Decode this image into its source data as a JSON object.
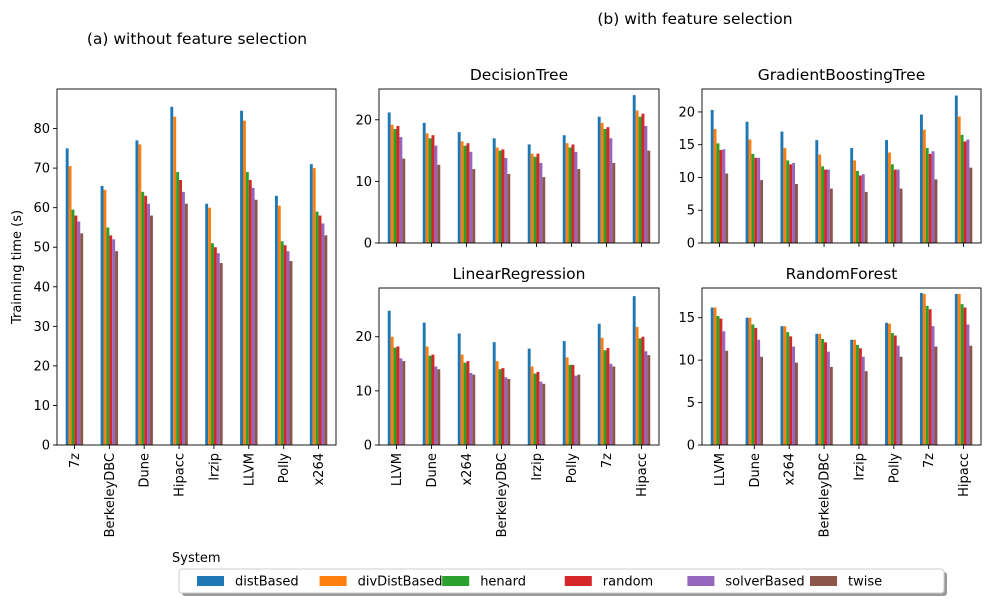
{
  "figure": {
    "left_title": "(a) without feature selection",
    "right_title": "(b) with feature selection",
    "ylabel": "Trainning time (s)",
    "legend_title": "System"
  },
  "legend": {
    "entries": [
      {
        "name": "distBased",
        "color": "#1f77b4"
      },
      {
        "name": "divDistBased",
        "color": "#ff7f0e"
      },
      {
        "name": "henard",
        "color": "#2ca02c"
      },
      {
        "name": "random",
        "color": "#d62728"
      },
      {
        "name": "solverBased",
        "color": "#9467bd"
      },
      {
        "name": "twise",
        "color": "#8c564b"
      }
    ]
  },
  "chart_data": [
    {
      "id": "a",
      "type": "bar",
      "title": "",
      "ylabel": "Trainning time (s)",
      "ylim": [
        0,
        90
      ],
      "yticks": [
        0,
        10,
        20,
        30,
        40,
        50,
        60,
        70,
        80
      ],
      "categories": [
        "7z",
        "BerkeleyDBC",
        "Dune",
        "Hipacc",
        "lrzip",
        "LLVM",
        "Polly",
        "x264"
      ],
      "series": [
        {
          "name": "distBased",
          "values": [
            75,
            65.5,
            77,
            85.5,
            61,
            84.5,
            63,
            71
          ]
        },
        {
          "name": "divDistBased",
          "values": [
            70.5,
            64.5,
            76,
            83,
            60,
            82,
            60.5,
            70
          ]
        },
        {
          "name": "henard",
          "values": [
            59.5,
            55,
            64,
            69,
            51,
            69,
            51.5,
            59
          ]
        },
        {
          "name": "random",
          "values": [
            58,
            53,
            63,
            67,
            50,
            67,
            50.5,
            58
          ]
        },
        {
          "name": "solverBased",
          "values": [
            56.5,
            52,
            61,
            64,
            48.5,
            65,
            49,
            56
          ]
        },
        {
          "name": "twise",
          "values": [
            53.5,
            49,
            58,
            61,
            46,
            62,
            46.5,
            53
          ]
        }
      ],
      "xtick_labels": true,
      "grid": false
    },
    {
      "id": "b1",
      "type": "bar",
      "title": "DecisionTree",
      "ylim": [
        0,
        25
      ],
      "yticks": [
        0,
        10,
        20
      ],
      "categories": [
        "LLVM",
        "Dune",
        "x264",
        "BerkeleyDBC",
        "lrzip",
        "Polly",
        "7z",
        "Hipacc"
      ],
      "series": [
        {
          "name": "distBased",
          "values": [
            21.2,
            19.5,
            18,
            17,
            16,
            17.5,
            20.5,
            24
          ]
        },
        {
          "name": "divDistBased",
          "values": [
            19.2,
            17.8,
            16.5,
            15.5,
            14.5,
            16.2,
            19.5,
            21.5
          ]
        },
        {
          "name": "henard",
          "values": [
            18.5,
            17,
            15.8,
            15,
            14,
            15.5,
            18.5,
            20.5
          ]
        },
        {
          "name": "random",
          "values": [
            19,
            17.5,
            16.2,
            15.2,
            14.5,
            16,
            18.8,
            21
          ]
        },
        {
          "name": "solverBased",
          "values": [
            17.2,
            15.8,
            14.8,
            13.8,
            13,
            14.8,
            17,
            19
          ]
        },
        {
          "name": "twise",
          "values": [
            13.7,
            12.7,
            12,
            11.2,
            10.7,
            12,
            13,
            15
          ]
        }
      ],
      "xtick_labels": false,
      "grid": false
    },
    {
      "id": "b2",
      "type": "bar",
      "title": "GradientBoostingTree",
      "ylim": [
        0,
        23.5
      ],
      "yticks": [
        0,
        5,
        10,
        15,
        20
      ],
      "categories": [
        "LLVM",
        "Dune",
        "x264",
        "BerkeleyDBC",
        "lrzip",
        "Polly",
        "7z",
        "Hipacc"
      ],
      "series": [
        {
          "name": "distBased",
          "values": [
            20.3,
            18.5,
            17,
            15.7,
            14.5,
            15.7,
            19.6,
            22.5
          ]
        },
        {
          "name": "divDistBased",
          "values": [
            17.4,
            15.8,
            14.5,
            13.5,
            12.6,
            13.8,
            17.3,
            19.3
          ]
        },
        {
          "name": "henard",
          "values": [
            15.2,
            13.6,
            12.6,
            11.7,
            11,
            12,
            14.5,
            16.5
          ]
        },
        {
          "name": "random",
          "values": [
            14.2,
            13,
            12,
            11.2,
            10.3,
            11.2,
            13.6,
            15.5
          ]
        },
        {
          "name": "solverBased",
          "values": [
            14.3,
            13,
            12.2,
            11.2,
            10.5,
            11.2,
            14,
            15.8
          ]
        },
        {
          "name": "twise",
          "values": [
            10.6,
            9.6,
            9,
            8.3,
            7.8,
            8.3,
            9.7,
            11.5
          ]
        }
      ],
      "xtick_labels": false,
      "grid": false
    },
    {
      "id": "b3",
      "type": "bar",
      "title": "LinearRegression",
      "ylim": [
        0,
        29
      ],
      "yticks": [
        0,
        10,
        20
      ],
      "categories": [
        "LLVM",
        "Dune",
        "x264",
        "BerkeleyDBC",
        "lrzip",
        "Polly",
        "7z",
        "Hipacc"
      ],
      "series": [
        {
          "name": "distBased",
          "values": [
            24.8,
            22.6,
            20.6,
            19,
            17.8,
            19.2,
            22.4,
            27.5
          ]
        },
        {
          "name": "divDistBased",
          "values": [
            20,
            18.2,
            16.7,
            15.5,
            14.5,
            16.2,
            19.8,
            21.8
          ]
        },
        {
          "name": "henard",
          "values": [
            18,
            16.5,
            15.2,
            14,
            13.2,
            14.8,
            17.5,
            19.7
          ]
        },
        {
          "name": "random",
          "values": [
            18.2,
            16.7,
            15.5,
            14.2,
            13.5,
            14.8,
            17.9,
            20
          ]
        },
        {
          "name": "solverBased",
          "values": [
            16,
            14.5,
            13.3,
            12.5,
            11.7,
            12.8,
            15,
            17.3
          ]
        },
        {
          "name": "twise",
          "values": [
            15.5,
            14,
            13,
            12.2,
            11.3,
            13,
            14.5,
            16.6
          ]
        }
      ],
      "xtick_labels": true,
      "grid": false
    },
    {
      "id": "b4",
      "type": "bar",
      "title": "RandomForest",
      "ylim": [
        0,
        18.5
      ],
      "yticks": [
        0,
        5,
        10,
        15
      ],
      "categories": [
        "LLVM",
        "Dune",
        "x264",
        "BerkeleyDBC",
        "lrzip",
        "Polly",
        "7z",
        "Hipacc"
      ],
      "series": [
        {
          "name": "distBased",
          "values": [
            16.2,
            15,
            14,
            13.1,
            12.4,
            14.4,
            17.9,
            17.8
          ]
        },
        {
          "name": "divDistBased",
          "values": [
            16.2,
            15,
            14,
            13.1,
            12.4,
            14.3,
            17.8,
            17.8
          ]
        },
        {
          "name": "henard",
          "values": [
            15.2,
            14.2,
            13.3,
            12.5,
            11.8,
            13.2,
            16.4,
            16.6
          ]
        },
        {
          "name": "random",
          "values": [
            14.9,
            13.8,
            12.8,
            12.1,
            11.4,
            12.9,
            16,
            16.2
          ]
        },
        {
          "name": "solverBased",
          "values": [
            13.4,
            12.4,
            11.6,
            11,
            10.4,
            11.7,
            14,
            14.2
          ]
        },
        {
          "name": "twise",
          "values": [
            11.1,
            10.4,
            9.7,
            9.2,
            8.7,
            10.4,
            11.6,
            11.7
          ]
        }
      ],
      "xtick_labels": true,
      "grid": false
    }
  ]
}
